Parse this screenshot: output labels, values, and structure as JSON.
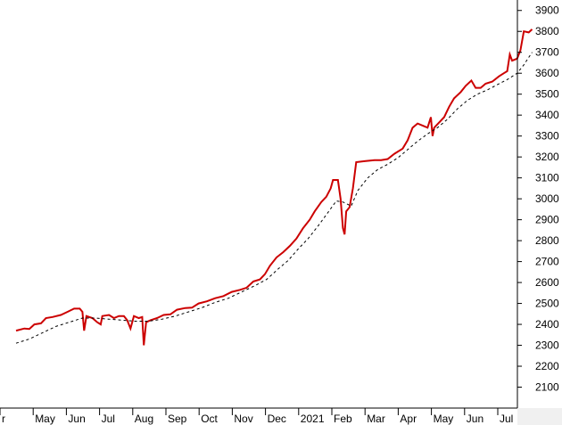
{
  "chart_data": {
    "type": "line",
    "title": "",
    "xlabel": "",
    "ylabel": "",
    "ylim": [
      2000,
      3950
    ],
    "y_ticks": [
      2100,
      2200,
      2300,
      2400,
      2500,
      2600,
      2700,
      2800,
      2900,
      3000,
      3100,
      3200,
      3300,
      3400,
      3500,
      3600,
      3700,
      3800,
      3900
    ],
    "y_axis_position": "right",
    "x_range": [
      0,
      15.3
    ],
    "x_ticks": [
      {
        "label": "r",
        "x": 0
      },
      {
        "label": "May",
        "x": 1
      },
      {
        "label": "Jun",
        "x": 2
      },
      {
        "label": "Jul",
        "x": 3
      },
      {
        "label": "Aug",
        "x": 4
      },
      {
        "label": "Sep",
        "x": 5
      },
      {
        "label": "Oct",
        "x": 6
      },
      {
        "label": "Nov",
        "x": 7
      },
      {
        "label": "Dec",
        "x": 8
      },
      {
        "label": "2021",
        "x": 9
      },
      {
        "label": "Feb",
        "x": 10
      },
      {
        "label": "Mar",
        "x": 11
      },
      {
        "label": "Apr",
        "x": 12
      },
      {
        "label": "May",
        "x": 13
      },
      {
        "label": "Jun",
        "x": 14
      },
      {
        "label": "Jul",
        "x": 15
      }
    ],
    "grid": false,
    "legend": "none",
    "colors": {
      "price": "#cc0000",
      "average": "#000000"
    },
    "series": [
      {
        "style": "solid",
        "color": "#cc0000",
        "points": [
          [
            0.0,
            2370
          ],
          [
            0.25,
            2380
          ],
          [
            0.4,
            2378
          ],
          [
            0.55,
            2400
          ],
          [
            0.75,
            2405
          ],
          [
            0.9,
            2430
          ],
          [
            1.1,
            2435
          ],
          [
            1.35,
            2445
          ],
          [
            1.55,
            2460
          ],
          [
            1.75,
            2475
          ],
          [
            1.92,
            2475
          ],
          [
            2.0,
            2460
          ],
          [
            2.05,
            2370
          ],
          [
            2.12,
            2440
          ],
          [
            2.3,
            2430
          ],
          [
            2.45,
            2410
          ],
          [
            2.55,
            2400
          ],
          [
            2.6,
            2440
          ],
          [
            2.8,
            2445
          ],
          [
            2.95,
            2430
          ],
          [
            3.1,
            2440
          ],
          [
            3.25,
            2440
          ],
          [
            3.35,
            2420
          ],
          [
            3.45,
            2380
          ],
          [
            3.55,
            2440
          ],
          [
            3.7,
            2430
          ],
          [
            3.8,
            2435
          ],
          [
            3.85,
            2300
          ],
          [
            3.92,
            2410
          ],
          [
            4.05,
            2420
          ],
          [
            4.25,
            2430
          ],
          [
            4.45,
            2445
          ],
          [
            4.65,
            2448
          ],
          [
            4.85,
            2470
          ],
          [
            5.1,
            2478
          ],
          [
            5.3,
            2480
          ],
          [
            5.5,
            2500
          ],
          [
            5.75,
            2510
          ],
          [
            6.0,
            2525
          ],
          [
            6.25,
            2535
          ],
          [
            6.5,
            2555
          ],
          [
            6.75,
            2565
          ],
          [
            6.95,
            2575
          ],
          [
            7.15,
            2605
          ],
          [
            7.35,
            2615
          ],
          [
            7.5,
            2640
          ],
          [
            7.65,
            2680
          ],
          [
            7.85,
            2720
          ],
          [
            8.05,
            2745
          ],
          [
            8.25,
            2775
          ],
          [
            8.45,
            2810
          ],
          [
            8.65,
            2860
          ],
          [
            8.85,
            2900
          ],
          [
            9.0,
            2940
          ],
          [
            9.2,
            2985
          ],
          [
            9.35,
            3010
          ],
          [
            9.48,
            3050
          ],
          [
            9.55,
            3090
          ],
          [
            9.7,
            3090
          ],
          [
            9.78,
            3000
          ],
          [
            9.85,
            2860
          ],
          [
            9.9,
            2830
          ],
          [
            9.95,
            2940
          ],
          [
            10.05,
            2960
          ],
          [
            10.15,
            3050
          ],
          [
            10.25,
            3175
          ],
          [
            10.5,
            3180
          ],
          [
            10.8,
            3185
          ],
          [
            11.0,
            3185
          ],
          [
            11.2,
            3190
          ],
          [
            11.4,
            3215
          ],
          [
            11.65,
            3240
          ],
          [
            11.8,
            3280
          ],
          [
            11.95,
            3340
          ],
          [
            12.1,
            3360
          ],
          [
            12.25,
            3350
          ],
          [
            12.4,
            3340
          ],
          [
            12.5,
            3390
          ],
          [
            12.55,
            3300
          ],
          [
            12.6,
            3340
          ],
          [
            12.75,
            3365
          ],
          [
            12.9,
            3390
          ],
          [
            13.05,
            3440
          ],
          [
            13.2,
            3480
          ],
          [
            13.4,
            3510
          ],
          [
            13.55,
            3540
          ],
          [
            13.72,
            3565
          ],
          [
            13.85,
            3530
          ],
          [
            14.0,
            3530
          ],
          [
            14.15,
            3550
          ],
          [
            14.35,
            3560
          ],
          [
            14.55,
            3585
          ],
          [
            14.7,
            3600
          ],
          [
            14.8,
            3610
          ],
          [
            14.88,
            3690
          ],
          [
            14.95,
            3660
          ],
          [
            15.1,
            3670
          ],
          [
            15.2,
            3710
          ],
          [
            15.3,
            3800
          ],
          [
            15.45,
            3795
          ],
          [
            15.55,
            3810
          ]
        ]
      },
      {
        "style": "dashed",
        "color": "#000000",
        "points": [
          [
            0.0,
            2310
          ],
          [
            0.4,
            2330
          ],
          [
            0.8,
            2360
          ],
          [
            1.2,
            2390
          ],
          [
            1.6,
            2410
          ],
          [
            2.0,
            2430
          ],
          [
            2.4,
            2430
          ],
          [
            2.8,
            2425
          ],
          [
            3.2,
            2420
          ],
          [
            3.6,
            2415
          ],
          [
            4.0,
            2415
          ],
          [
            4.4,
            2425
          ],
          [
            4.8,
            2440
          ],
          [
            5.2,
            2460
          ],
          [
            5.6,
            2480
          ],
          [
            6.0,
            2505
          ],
          [
            6.4,
            2525
          ],
          [
            6.8,
            2555
          ],
          [
            7.2,
            2585
          ],
          [
            7.55,
            2615
          ],
          [
            7.9,
            2665
          ],
          [
            8.2,
            2705
          ],
          [
            8.5,
            2760
          ],
          [
            8.8,
            2810
          ],
          [
            9.1,
            2870
          ],
          [
            9.4,
            2935
          ],
          [
            9.65,
            2990
          ],
          [
            9.85,
            2985
          ],
          [
            10.1,
            2965
          ],
          [
            10.3,
            3040
          ],
          [
            10.6,
            3100
          ],
          [
            10.9,
            3140
          ],
          [
            11.2,
            3165
          ],
          [
            11.5,
            3195
          ],
          [
            11.8,
            3235
          ],
          [
            12.1,
            3275
          ],
          [
            12.4,
            3310
          ],
          [
            12.7,
            3340
          ],
          [
            13.0,
            3380
          ],
          [
            13.3,
            3430
          ],
          [
            13.6,
            3470
          ],
          [
            13.9,
            3500
          ],
          [
            14.2,
            3520
          ],
          [
            14.5,
            3545
          ],
          [
            14.8,
            3570
          ],
          [
            15.1,
            3600
          ],
          [
            15.3,
            3640
          ],
          [
            15.55,
            3700
          ]
        ]
      }
    ]
  }
}
